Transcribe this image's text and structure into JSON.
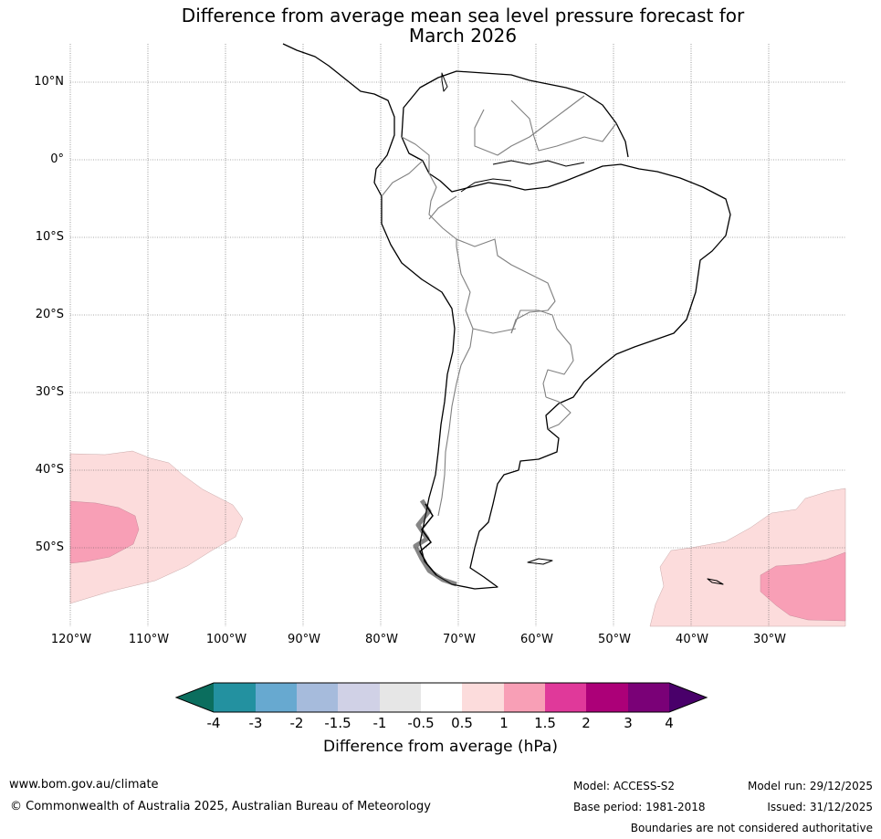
{
  "title": {
    "line1": "Difference from average mean sea level pressure forecast for",
    "line2": "March 2026"
  },
  "map": {
    "region": "South America",
    "lat_labels": [
      "10°N",
      "0°",
      "10°S",
      "20°S",
      "30°S",
      "40°S",
      "50°S"
    ],
    "lon_labels": [
      "120°W",
      "110°W",
      "100°W",
      "90°W",
      "80°W",
      "70°W",
      "60°W",
      "50°W",
      "40°W",
      "30°W"
    ],
    "lat_range": [
      -60,
      15
    ],
    "lon_range": [
      -120,
      -20
    ],
    "anomaly_regions": [
      {
        "area": "south-east Pacific off Chile",
        "level": "0.5 to 1",
        "color": "#fcdcdc"
      },
      {
        "area": "south-east Pacific core",
        "level": "1 to 1.5",
        "color": "#f89fb6"
      },
      {
        "area": "south-west Atlantic",
        "level": "0.5 to 1",
        "color": "#fcdcdc"
      },
      {
        "area": "south-west Atlantic core",
        "level": "1 to 1.5",
        "color": "#f89fb6"
      }
    ]
  },
  "colorbar": {
    "label": "Difference from average (hPa)",
    "ticks": [
      "-4",
      "-3",
      "-2",
      "-1.5",
      "-1",
      "-0.5",
      "0.5",
      "1",
      "1.5",
      "2",
      "3",
      "4"
    ],
    "colors": [
      "#0b6e5e",
      "#2391a0",
      "#67a9d0",
      "#a6bbdc",
      "#d0d1e6",
      "#e6e6e6",
      "#ffffff",
      "#fcdcdc",
      "#f89fb6",
      "#e0399a",
      "#ac0078",
      "#7a0177",
      "#49006a"
    ]
  },
  "footer": {
    "url": "www.bom.gov.au/climate",
    "copyright": "© Commonwealth of Australia 2025, Australian Bureau of Meteorology",
    "model": "Model: ACCESS-S2",
    "base_period": "Base period: 1981-2018",
    "model_run": "Model run: 29/12/2025",
    "issued": "Issued: 31/12/2025",
    "disclaimer": "Boundaries are not considered authoritative"
  }
}
